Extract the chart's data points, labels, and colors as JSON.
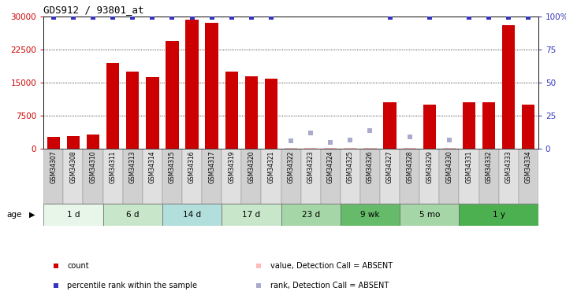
{
  "title": "GDS912 / 93801_at",
  "samples": [
    "GSM34307",
    "GSM34308",
    "GSM34310",
    "GSM34311",
    "GSM34313",
    "GSM34314",
    "GSM34315",
    "GSM34316",
    "GSM34317",
    "GSM34319",
    "GSM34320",
    "GSM34321",
    "GSM34322",
    "GSM34323",
    "GSM34324",
    "GSM34325",
    "GSM34326",
    "GSM34327",
    "GSM34328",
    "GSM34329",
    "GSM34330",
    "GSM34331",
    "GSM34332",
    "GSM34333",
    "GSM34334"
  ],
  "counts": [
    2800,
    2900,
    3200,
    19500,
    17500,
    16200,
    24500,
    29200,
    28500,
    17500,
    16500,
    15800,
    300,
    300,
    300,
    300,
    300,
    10500,
    300,
    10000,
    300,
    10500,
    10500,
    28000,
    10000
  ],
  "percentile_ranks": [
    99,
    99,
    99,
    99,
    99,
    99,
    99,
    99,
    99,
    99,
    99,
    99,
    null,
    null,
    null,
    null,
    null,
    99,
    null,
    99,
    null,
    99,
    99,
    99,
    99
  ],
  "absent_counts": [
    null,
    null,
    null,
    null,
    null,
    null,
    null,
    null,
    null,
    null,
    null,
    null,
    300,
    300,
    300,
    300,
    300,
    null,
    300,
    null,
    300,
    null,
    null,
    null,
    null
  ],
  "absent_ranks": [
    null,
    null,
    null,
    null,
    null,
    null,
    null,
    null,
    null,
    null,
    null,
    null,
    6,
    12,
    5,
    7,
    14,
    null,
    9,
    null,
    7,
    null,
    null,
    null,
    null
  ],
  "groups": [
    {
      "label": "1 d",
      "start": 0,
      "end": 3,
      "color": "#e8f5e9"
    },
    {
      "label": "6 d",
      "start": 3,
      "end": 6,
      "color": "#c8e6c9"
    },
    {
      "label": "14 d",
      "start": 6,
      "end": 9,
      "color": "#a5d6a7"
    },
    {
      "label": "17 d",
      "start": 9,
      "end": 12,
      "color": "#c8e6c9"
    },
    {
      "label": "23 d",
      "start": 12,
      "end": 15,
      "color": "#a5d6a7"
    },
    {
      "label": "9 wk",
      "start": 15,
      "end": 18,
      "color": "#66bb6a"
    },
    {
      "label": "5 mo",
      "start": 18,
      "end": 21,
      "color": "#a5d6a7"
    },
    {
      "label": "1 y",
      "start": 21,
      "end": 25,
      "color": "#4caf50"
    }
  ],
  "ylim_left": [
    0,
    30000
  ],
  "ylim_right": [
    0,
    100
  ],
  "yticks_left": [
    0,
    7500,
    15000,
    22500,
    30000
  ],
  "yticks_right": [
    0,
    25,
    50,
    75,
    100
  ],
  "bar_color": "#cc0000",
  "percentile_color": "#3333bb",
  "absent_bar_color": "#ffbbbb",
  "absent_rank_color": "#aaaacc",
  "background_color": "#ffffff",
  "legend_items": [
    {
      "label": "count",
      "color": "#cc0000",
      "marker": "s"
    },
    {
      "label": "percentile rank within the sample",
      "color": "#3333bb",
      "marker": "s"
    },
    {
      "label": "value, Detection Call = ABSENT",
      "color": "#ffbbbb",
      "marker": "s"
    },
    {
      "label": "rank, Detection Call = ABSENT",
      "color": "#aaaacc",
      "marker": "s"
    }
  ],
  "group_alt_colors": [
    "#e8f5e9",
    "#c8e6c9",
    "#a5d6a7",
    "#c8e6c9",
    "#99cc99",
    "#66bb6a",
    "#99cc99",
    "#4caf50"
  ]
}
